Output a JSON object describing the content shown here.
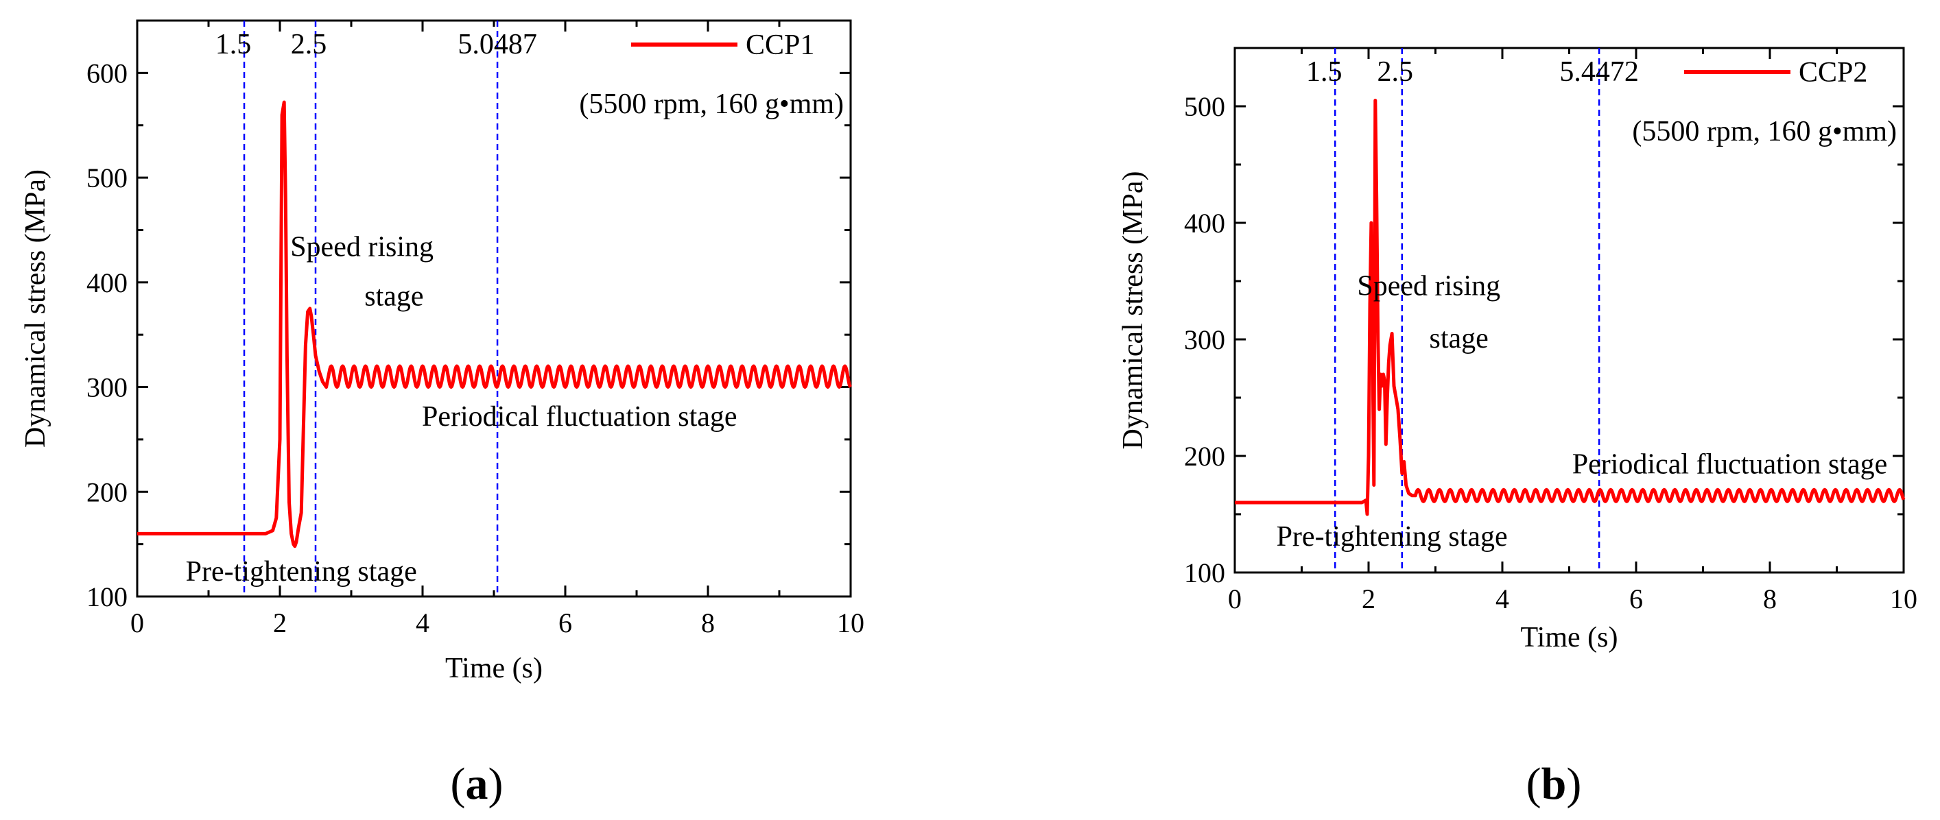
{
  "colors": {
    "series": "#ff0000",
    "vline": "#0000ff",
    "axis": "#000000"
  },
  "chart_data": [
    {
      "type": "line",
      "caption_letter": "a",
      "xlabel": "Time (s)",
      "ylabel": "Dynamical stress (MPa)",
      "xlim": [
        0,
        10
      ],
      "ylim": [
        100,
        650
      ],
      "xticks": [
        0,
        2,
        4,
        6,
        8,
        10
      ],
      "yticks": [
        100,
        200,
        300,
        400,
        500,
        600
      ],
      "legend": {
        "name": "CCP1",
        "condition": "(5500 rpm, 160 g•mm)",
        "position": "top-right"
      },
      "vlines": [
        {
          "x": 1.5,
          "label": "1.5"
        },
        {
          "x": 2.5,
          "label": "2.5"
        },
        {
          "x": 5.0487,
          "label": "5.0487"
        }
      ],
      "annotations": [
        {
          "text": "Speed rising",
          "at": [
            3.15,
            425
          ]
        },
        {
          "text": "stage",
          "at": [
            3.6,
            378
          ]
        },
        {
          "text": "Periodical fluctuation stage",
          "at": [
            6.2,
            263
          ]
        },
        {
          "text": "Pre-tightening stage",
          "at": [
            2.3,
            115
          ]
        }
      ],
      "oscillation": {
        "start": 2.68,
        "end": 10,
        "mean": 310,
        "amplitude": 10,
        "period": 0.16
      },
      "series": [
        {
          "name": "CCP1",
          "x": [
            0,
            1.5,
            1.8,
            1.9,
            1.95,
            2.0,
            2.03,
            2.06,
            2.08,
            2.1,
            2.13,
            2.16,
            2.19,
            2.21,
            2.23,
            2.26,
            2.3,
            2.33,
            2.36,
            2.39,
            2.42,
            2.44,
            2.47,
            2.5,
            2.55,
            2.6,
            2.65
          ],
          "y": [
            160,
            160,
            160,
            163,
            175,
            250,
            560,
            572,
            480,
            330,
            190,
            160,
            150,
            148,
            152,
            165,
            180,
            260,
            340,
            372,
            375,
            368,
            350,
            330,
            315,
            305,
            300
          ]
        }
      ]
    },
    {
      "type": "line",
      "caption_letter": "b",
      "xlabel": "Time (s)",
      "ylabel": "Dynamical stress (MPa)",
      "xlim": [
        0,
        10
      ],
      "ylim": [
        100,
        550
      ],
      "xticks": [
        0,
        2,
        4,
        6,
        8,
        10
      ],
      "yticks": [
        100,
        200,
        300,
        400,
        500
      ],
      "legend": {
        "name": "CCP2",
        "condition": "(5500 rpm, 160 g•mm)",
        "position": "top-right"
      },
      "vlines": [
        {
          "x": 1.5,
          "label": "1.5"
        },
        {
          "x": 2.5,
          "label": "2.5"
        },
        {
          "x": 5.4472,
          "label": "5.4472"
        }
      ],
      "annotations": [
        {
          "text": "Speed rising",
          "at": [
            2.9,
            338
          ]
        },
        {
          "text": "stage",
          "at": [
            3.35,
            293
          ]
        },
        {
          "text": "Periodical fluctuation stage",
          "at": [
            7.4,
            185
          ]
        },
        {
          "text": "Pre-tightening stage",
          "at": [
            2.35,
            123
          ]
        }
      ],
      "oscillation": {
        "start": 2.7,
        "end": 10,
        "mean": 166,
        "amplitude": 5,
        "period": 0.16
      },
      "series": [
        {
          "name": "CCP2",
          "x": [
            0,
            1.5,
            1.9,
            1.96,
            1.98,
            2.0,
            2.02,
            2.04,
            2.06,
            2.08,
            2.1,
            2.12,
            2.14,
            2.16,
            2.18,
            2.2,
            2.22,
            2.24,
            2.26,
            2.28,
            2.3,
            2.32,
            2.35,
            2.38,
            2.41,
            2.44,
            2.47,
            2.5,
            2.53,
            2.56,
            2.6,
            2.65
          ],
          "y": [
            160,
            160,
            160,
            162,
            150,
            200,
            330,
            400,
            290,
            175,
            505,
            420,
            300,
            240,
            270,
            260,
            270,
            265,
            210,
            250,
            280,
            295,
            305,
            260,
            250,
            240,
            215,
            185,
            195,
            175,
            168,
            166
          ]
        }
      ]
    }
  ]
}
